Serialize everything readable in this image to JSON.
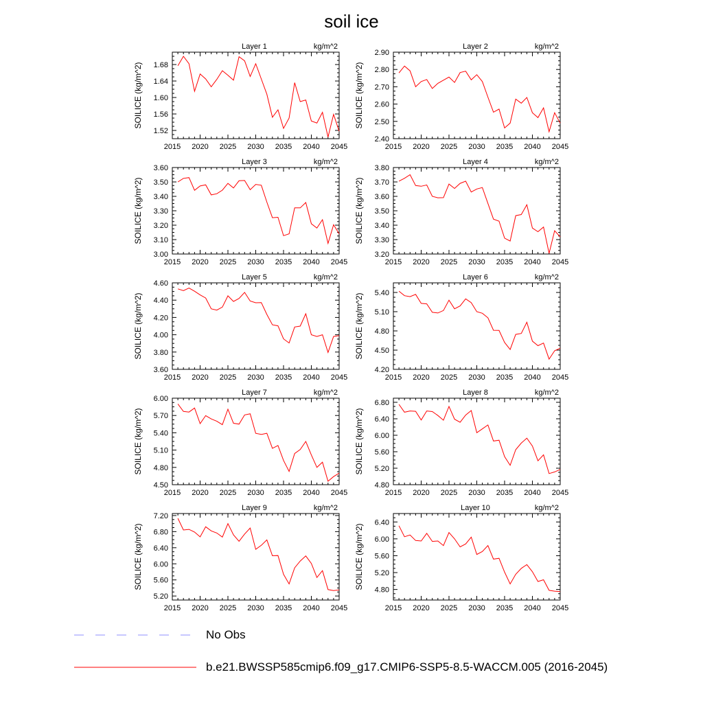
{
  "title": "soil ice",
  "colors": {
    "model_line": "#ff0000",
    "obs_line": "#8f8fff",
    "axis": "#000000"
  },
  "legend": [
    {
      "label": "No Obs",
      "style": "dashed",
      "color": "#8f8fff"
    },
    {
      "label": "b.e21.BWSSP585cmip6.f09_g17.CMIP6-SSP5-8.5-WACCM.005 (2016-2045)",
      "style": "solid",
      "color": "#ff0000"
    }
  ],
  "chart_data": [
    {
      "type": "line",
      "title": "Layer 1",
      "units": "kg/m^2",
      "ylabel": "SOILICE  (kg/m^2)",
      "xlabel": "",
      "xlim": [
        2015,
        2045
      ],
      "ylim": [
        1.5,
        1.71
      ],
      "xticks": [
        2015,
        2020,
        2025,
        2030,
        2035,
        2040,
        2045
      ],
      "yticks": [
        "1.52",
        "1.56",
        "1.60",
        "1.64",
        "1.68"
      ],
      "x": [
        2016,
        2017,
        2018,
        2019,
        2020,
        2021,
        2022,
        2023,
        2024,
        2025,
        2026,
        2027,
        2028,
        2029,
        2030,
        2031,
        2032,
        2033,
        2034,
        2035,
        2036,
        2037,
        2038,
        2039,
        2040,
        2041,
        2042,
        2043,
        2044,
        2045
      ],
      "series": [
        {
          "values": [
            1.677,
            1.7,
            1.682,
            1.615,
            1.657,
            1.645,
            1.626,
            1.644,
            1.665,
            1.654,
            1.642,
            1.699,
            1.689,
            1.651,
            1.682,
            1.645,
            1.608,
            1.552,
            1.57,
            1.525,
            1.55,
            1.636,
            1.59,
            1.594,
            1.543,
            1.538,
            1.564,
            1.504,
            1.559,
            1.518
          ]
        }
      ]
    },
    {
      "type": "line",
      "title": "Layer 2",
      "units": "kg/m^2",
      "ylabel": "SOILICE  (kg/m^2)",
      "xlabel": "",
      "xlim": [
        2015,
        2045
      ],
      "ylim": [
        2.4,
        2.9
      ],
      "xticks": [
        2015,
        2020,
        2025,
        2030,
        2035,
        2040,
        2045
      ],
      "yticks": [
        "2.40",
        "2.50",
        "2.60",
        "2.70",
        "2.80",
        "2.90"
      ],
      "x": [
        2016,
        2017,
        2018,
        2019,
        2020,
        2021,
        2022,
        2023,
        2024,
        2025,
        2026,
        2027,
        2028,
        2029,
        2030,
        2031,
        2032,
        2033,
        2034,
        2035,
        2036,
        2037,
        2038,
        2039,
        2040,
        2041,
        2042,
        2043,
        2044,
        2045
      ],
      "series": [
        {
          "values": [
            2.78,
            2.82,
            2.792,
            2.7,
            2.73,
            2.742,
            2.69,
            2.72,
            2.738,
            2.756,
            2.725,
            2.782,
            2.79,
            2.74,
            2.77,
            2.73,
            2.64,
            2.553,
            2.571,
            2.462,
            2.49,
            2.629,
            2.605,
            2.638,
            2.55,
            2.522,
            2.578,
            2.44,
            2.55,
            2.49
          ]
        }
      ]
    },
    {
      "type": "line",
      "title": "Layer 3",
      "units": "kg/m^2",
      "ylabel": "SOILICE  (kg/m^2)",
      "xlabel": "",
      "xlim": [
        2015,
        2045
      ],
      "ylim": [
        3.0,
        3.6
      ],
      "xticks": [
        2015,
        2020,
        2025,
        2030,
        2035,
        2040,
        2045
      ],
      "yticks": [
        "3.00",
        "3.10",
        "3.20",
        "3.30",
        "3.40",
        "3.50",
        "3.60"
      ],
      "x": [
        2016,
        2017,
        2018,
        2019,
        2020,
        2021,
        2022,
        2023,
        2024,
        2025,
        2026,
        2027,
        2028,
        2029,
        2030,
        2031,
        2032,
        2033,
        2034,
        2035,
        2036,
        2037,
        2038,
        2039,
        2040,
        2041,
        2042,
        2043,
        2044,
        2045
      ],
      "series": [
        {
          "values": [
            3.5,
            3.525,
            3.53,
            3.442,
            3.472,
            3.48,
            3.41,
            3.418,
            3.443,
            3.49,
            3.458,
            3.508,
            3.51,
            3.446,
            3.483,
            3.477,
            3.36,
            3.252,
            3.255,
            3.127,
            3.14,
            3.32,
            3.32,
            3.357,
            3.21,
            3.18,
            3.238,
            3.074,
            3.203,
            3.14
          ]
        }
      ]
    },
    {
      "type": "line",
      "title": "Layer 4",
      "units": "kg/m^2",
      "ylabel": "SOILICE  (kg/m^2)",
      "xlabel": "",
      "xlim": [
        2015,
        2045
      ],
      "ylim": [
        3.2,
        3.8
      ],
      "xticks": [
        2015,
        2020,
        2025,
        2030,
        2035,
        2040,
        2045
      ],
      "yticks": [
        "3.20",
        "3.30",
        "3.40",
        "3.50",
        "3.60",
        "3.70",
        "3.80"
      ],
      "x": [
        2016,
        2017,
        2018,
        2019,
        2020,
        2021,
        2022,
        2023,
        2024,
        2025,
        2026,
        2027,
        2028,
        2029,
        2030,
        2031,
        2032,
        2033,
        2034,
        2035,
        2036,
        2037,
        2038,
        2039,
        2040,
        2041,
        2042,
        2043,
        2044,
        2045
      ],
      "series": [
        {
          "values": [
            3.705,
            3.725,
            3.75,
            3.675,
            3.67,
            3.679,
            3.6,
            3.59,
            3.591,
            3.685,
            3.655,
            3.69,
            3.705,
            3.63,
            3.651,
            3.661,
            3.551,
            3.442,
            3.428,
            3.31,
            3.29,
            3.466,
            3.474,
            3.542,
            3.38,
            3.355,
            3.387,
            3.205,
            3.362,
            3.319
          ]
        }
      ]
    },
    {
      "type": "line",
      "title": "Layer 5",
      "units": "kg/m^2",
      "ylabel": "SOILICE  (kg/m^2)",
      "xlabel": "",
      "xlim": [
        2015,
        2045
      ],
      "ylim": [
        3.6,
        4.6
      ],
      "xticks": [
        2015,
        2020,
        2025,
        2030,
        2035,
        2040,
        2045
      ],
      "yticks": [
        "3.60",
        "3.80",
        "4.00",
        "4.20",
        "4.40",
        "4.60"
      ],
      "x": [
        2016,
        2017,
        2018,
        2019,
        2020,
        2021,
        2022,
        2023,
        2024,
        2025,
        2026,
        2027,
        2028,
        2029,
        2030,
        2031,
        2032,
        2033,
        2034,
        2035,
        2036,
        2037,
        2038,
        2039,
        2040,
        2041,
        2042,
        2043,
        2044,
        2045
      ],
      "series": [
        {
          "values": [
            4.53,
            4.51,
            4.54,
            4.503,
            4.46,
            4.425,
            4.3,
            4.285,
            4.32,
            4.45,
            4.385,
            4.42,
            4.49,
            4.39,
            4.37,
            4.372,
            4.235,
            4.115,
            4.103,
            3.952,
            3.905,
            4.09,
            4.1,
            4.243,
            4.0,
            3.98,
            4.0,
            3.795,
            3.98,
            3.99
          ]
        }
      ]
    },
    {
      "type": "line",
      "title": "Layer 6",
      "units": "kg/m^2",
      "ylabel": "SOILICE  (kg/m^2)",
      "xlabel": "",
      "xlim": [
        2015,
        2045
      ],
      "ylim": [
        4.2,
        5.55
      ],
      "xticks": [
        2015,
        2020,
        2025,
        2030,
        2035,
        2040,
        2045
      ],
      "yticks": [
        "4.20",
        "4.50",
        "4.80",
        "5.10",
        "5.40"
      ],
      "x": [
        2016,
        2017,
        2018,
        2019,
        2020,
        2021,
        2022,
        2023,
        2024,
        2025,
        2026,
        2027,
        2028,
        2029,
        2030,
        2031,
        2032,
        2033,
        2034,
        2035,
        2036,
        2037,
        2038,
        2039,
        2040,
        2041,
        2042,
        2043,
        2044,
        2045
      ],
      "series": [
        {
          "values": [
            5.42,
            5.35,
            5.335,
            5.37,
            5.23,
            5.222,
            5.09,
            5.08,
            5.118,
            5.28,
            5.145,
            5.19,
            5.3,
            5.24,
            5.1,
            5.075,
            5.005,
            4.81,
            4.808,
            4.62,
            4.51,
            4.745,
            4.76,
            4.935,
            4.64,
            4.57,
            4.61,
            4.36,
            4.49,
            4.53
          ]
        }
      ]
    },
    {
      "type": "line",
      "title": "Layer 7",
      "units": "kg/m^2",
      "ylabel": "SOILICE  (kg/m^2)",
      "xlabel": "",
      "xlim": [
        2015,
        2045
      ],
      "ylim": [
        4.5,
        6.0
      ],
      "xticks": [
        2015,
        2020,
        2025,
        2030,
        2035,
        2040,
        2045
      ],
      "yticks": [
        "4.50",
        "4.80",
        "5.10",
        "5.40",
        "5.70",
        "6.00"
      ],
      "x": [
        2016,
        2017,
        2018,
        2019,
        2020,
        2021,
        2022,
        2023,
        2024,
        2025,
        2026,
        2027,
        2028,
        2029,
        2030,
        2031,
        2032,
        2033,
        2034,
        2035,
        2036,
        2037,
        2038,
        2039,
        2040,
        2041,
        2042,
        2043,
        2044,
        2045
      ],
      "series": [
        {
          "values": [
            5.9,
            5.77,
            5.76,
            5.83,
            5.56,
            5.698,
            5.64,
            5.6,
            5.54,
            5.81,
            5.565,
            5.55,
            5.71,
            5.73,
            5.39,
            5.372,
            5.392,
            5.13,
            5.18,
            4.92,
            4.73,
            5.04,
            5.11,
            5.25,
            5.015,
            4.8,
            4.89,
            4.56,
            4.64,
            4.7
          ]
        }
      ]
    },
    {
      "type": "line",
      "title": "Layer 8",
      "units": "kg/m^2",
      "ylabel": "SOILICE  (kg/m^2)",
      "xlabel": "",
      "xlim": [
        2015,
        2045
      ],
      "ylim": [
        4.8,
        6.9
      ],
      "xticks": [
        2015,
        2020,
        2025,
        2030,
        2035,
        2040,
        2045
      ],
      "yticks": [
        "4.80",
        "5.20",
        "5.60",
        "6.00",
        "6.40",
        "6.80"
      ],
      "x": [
        2016,
        2017,
        2018,
        2019,
        2020,
        2021,
        2022,
        2023,
        2024,
        2025,
        2026,
        2027,
        2028,
        2029,
        2030,
        2031,
        2032,
        2033,
        2034,
        2035,
        2036,
        2037,
        2038,
        2039,
        2040,
        2041,
        2042,
        2043,
        2044,
        2045
      ],
      "series": [
        {
          "values": [
            6.75,
            6.56,
            6.59,
            6.582,
            6.37,
            6.59,
            6.575,
            6.48,
            6.365,
            6.7,
            6.39,
            6.315,
            6.49,
            6.6,
            6.062,
            6.155,
            6.25,
            5.86,
            5.88,
            5.48,
            5.27,
            5.65,
            5.81,
            5.93,
            5.738,
            5.38,
            5.525,
            5.07,
            5.11,
            5.17
          ]
        }
      ]
    },
    {
      "type": "line",
      "title": "Layer 9",
      "units": "kg/m^2",
      "ylabel": "SOILICE  (kg/m^2)",
      "xlabel": "",
      "xlim": [
        2015,
        2045
      ],
      "ylim": [
        5.1,
        7.25
      ],
      "xticks": [
        2015,
        2020,
        2025,
        2030,
        2035,
        2040,
        2045
      ],
      "yticks": [
        "5.20",
        "5.60",
        "6.00",
        "6.40",
        "6.80",
        "7.20"
      ],
      "x": [
        2016,
        2017,
        2018,
        2019,
        2020,
        2021,
        2022,
        2023,
        2024,
        2025,
        2026,
        2027,
        2028,
        2029,
        2030,
        2031,
        2032,
        2033,
        2034,
        2035,
        2036,
        2037,
        2038,
        2039,
        2040,
        2041,
        2042,
        2043,
        2044,
        2045
      ],
      "series": [
        {
          "values": [
            7.13,
            6.84,
            6.855,
            6.79,
            6.67,
            6.92,
            6.818,
            6.765,
            6.665,
            7.0,
            6.72,
            6.56,
            6.74,
            6.89,
            6.36,
            6.46,
            6.595,
            6.2,
            6.205,
            5.74,
            5.5,
            5.9,
            6.07,
            6.195,
            6.01,
            5.66,
            5.83,
            5.36,
            5.335,
            5.35
          ]
        }
      ]
    },
    {
      "type": "line",
      "title": "Layer 10",
      "units": "kg/m^2",
      "ylabel": "SOILICE  (kg/m^2)",
      "xlabel": "",
      "xlim": [
        2015,
        2045
      ],
      "ylim": [
        4.55,
        6.6
      ],
      "xticks": [
        2015,
        2020,
        2025,
        2030,
        2035,
        2040,
        2045
      ],
      "yticks": [
        "4.80",
        "5.20",
        "5.60",
        "6.00",
        "6.40"
      ],
      "x": [
        2016,
        2017,
        2018,
        2019,
        2020,
        2021,
        2022,
        2023,
        2024,
        2025,
        2026,
        2027,
        2028,
        2029,
        2030,
        2031,
        2032,
        2033,
        2034,
        2035,
        2036,
        2037,
        2038,
        2039,
        2040,
        2041,
        2042,
        2043,
        2044,
        2045
      ],
      "series": [
        {
          "values": [
            6.31,
            6.05,
            6.09,
            5.96,
            5.95,
            6.13,
            5.94,
            5.95,
            5.84,
            6.15,
            6.0,
            5.81,
            5.88,
            6.04,
            5.63,
            5.7,
            5.84,
            5.52,
            5.54,
            5.21,
            4.93,
            5.16,
            5.3,
            5.39,
            5.22,
            4.99,
            5.03,
            4.78,
            4.76,
            4.75
          ]
        }
      ]
    }
  ]
}
